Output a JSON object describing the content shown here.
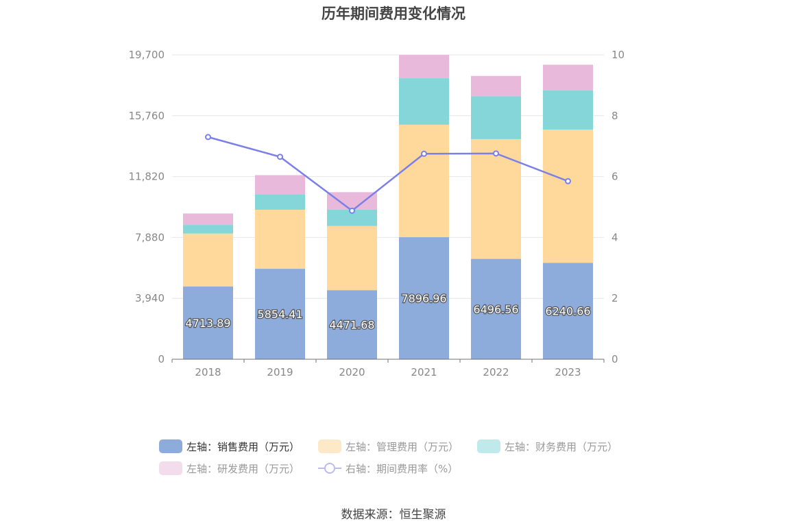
{
  "chart_data": {
    "type": "bar",
    "title": "历年期间费用变化情况",
    "categories": [
      "2018",
      "2019",
      "2020",
      "2021",
      "2022",
      "2023"
    ],
    "stacked": true,
    "series": [
      {
        "name": "左轴：销售费用（万元）",
        "axis": "left",
        "color": "#8eacdb",
        "values": [
          4713.89,
          5854.41,
          4471.68,
          7896.96,
          6496.56,
          6240.66
        ],
        "labels": [
          "4713.89",
          "5854.41",
          "4471.68",
          "7896.96",
          "6496.56",
          "6240.66"
        ]
      },
      {
        "name": "左轴：管理费用（万元）",
        "axis": "left",
        "color": "#fed99b",
        "values": [
          3420,
          3820,
          4150,
          7280,
          7750,
          8620
        ]
      },
      {
        "name": "左轴：财务费用（万元）",
        "axis": "left",
        "color": "#85d6d9",
        "values": [
          560,
          1010,
          1050,
          3010,
          2780,
          2540
        ]
      },
      {
        "name": "左轴：研发费用（万元）",
        "axis": "left",
        "color": "#e8b9da",
        "values": [
          740,
          1230,
          1140,
          1510,
          1310,
          1660
        ]
      },
      {
        "name": "右轴：期间费用率（%）",
        "axis": "right",
        "type": "line",
        "color": "#7b7fe8",
        "values": [
          7.3,
          6.65,
          4.88,
          6.75,
          6.76,
          5.85
        ]
      }
    ],
    "left_axis": {
      "ticks": [
        "0",
        "3,940",
        "7,880",
        "11,820",
        "15,760",
        "19,700"
      ],
      "ylim": [
        0,
        19700
      ]
    },
    "right_axis": {
      "ticks": [
        "0",
        "2",
        "4",
        "6",
        "8",
        "10"
      ],
      "ylim": [
        0,
        10
      ]
    },
    "grid": true,
    "legend_position": "bottom"
  },
  "source": "数据来源：恒生聚源"
}
